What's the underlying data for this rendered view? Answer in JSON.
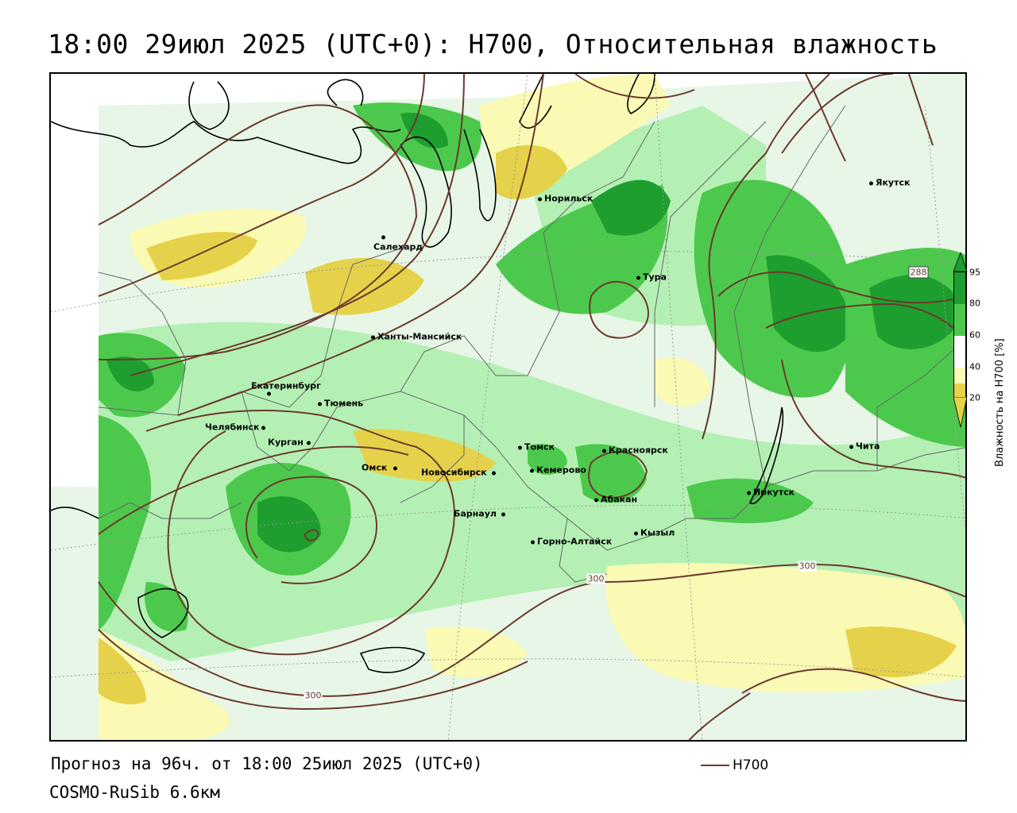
{
  "title": "18:00 29июл 2025 (UTC+0): H700, Относительная влажность",
  "map": {
    "cities": [
      {
        "name": "Норильск"
      },
      {
        "name": "Салехард"
      },
      {
        "name": "Якутск"
      },
      {
        "name": "Тура"
      },
      {
        "name": "Ханты-Мансийск"
      },
      {
        "name": "Екатеринбург"
      },
      {
        "name": "Тюмень"
      },
      {
        "name": "Челябинск"
      },
      {
        "name": "Курган"
      },
      {
        "name": "Омск"
      },
      {
        "name": "Новосибирск"
      },
      {
        "name": "Томск"
      },
      {
        "name": "Кемерово"
      },
      {
        "name": "Красноярск"
      },
      {
        "name": "Абакан"
      },
      {
        "name": "Барнаул"
      },
      {
        "name": "Горно-Алтайск"
      },
      {
        "name": "Кызыл"
      },
      {
        "name": "Иркутск"
      },
      {
        "name": "Чита"
      }
    ],
    "isoline_labels": [
      "288",
      "300",
      "300",
      "300"
    ],
    "colors": {
      "dark_green": "#1e9e2e",
      "green": "#4cc94c",
      "light_green": "#b4f0b4",
      "light_yellow": "#fafab4",
      "yellow": "#e6d24a",
      "contour": "#6b3a2e"
    }
  },
  "legend": {
    "title": "Влажность на H700 [%]",
    "ticks": [
      "95",
      "80",
      "60",
      "40",
      "20"
    ]
  },
  "footer": {
    "forecast": "Прогноз на 96ч. от 18:00 25июл 2025 (UTC+0)",
    "model": "COSMO-RuSib 6.6км",
    "h700_label": "H700"
  }
}
